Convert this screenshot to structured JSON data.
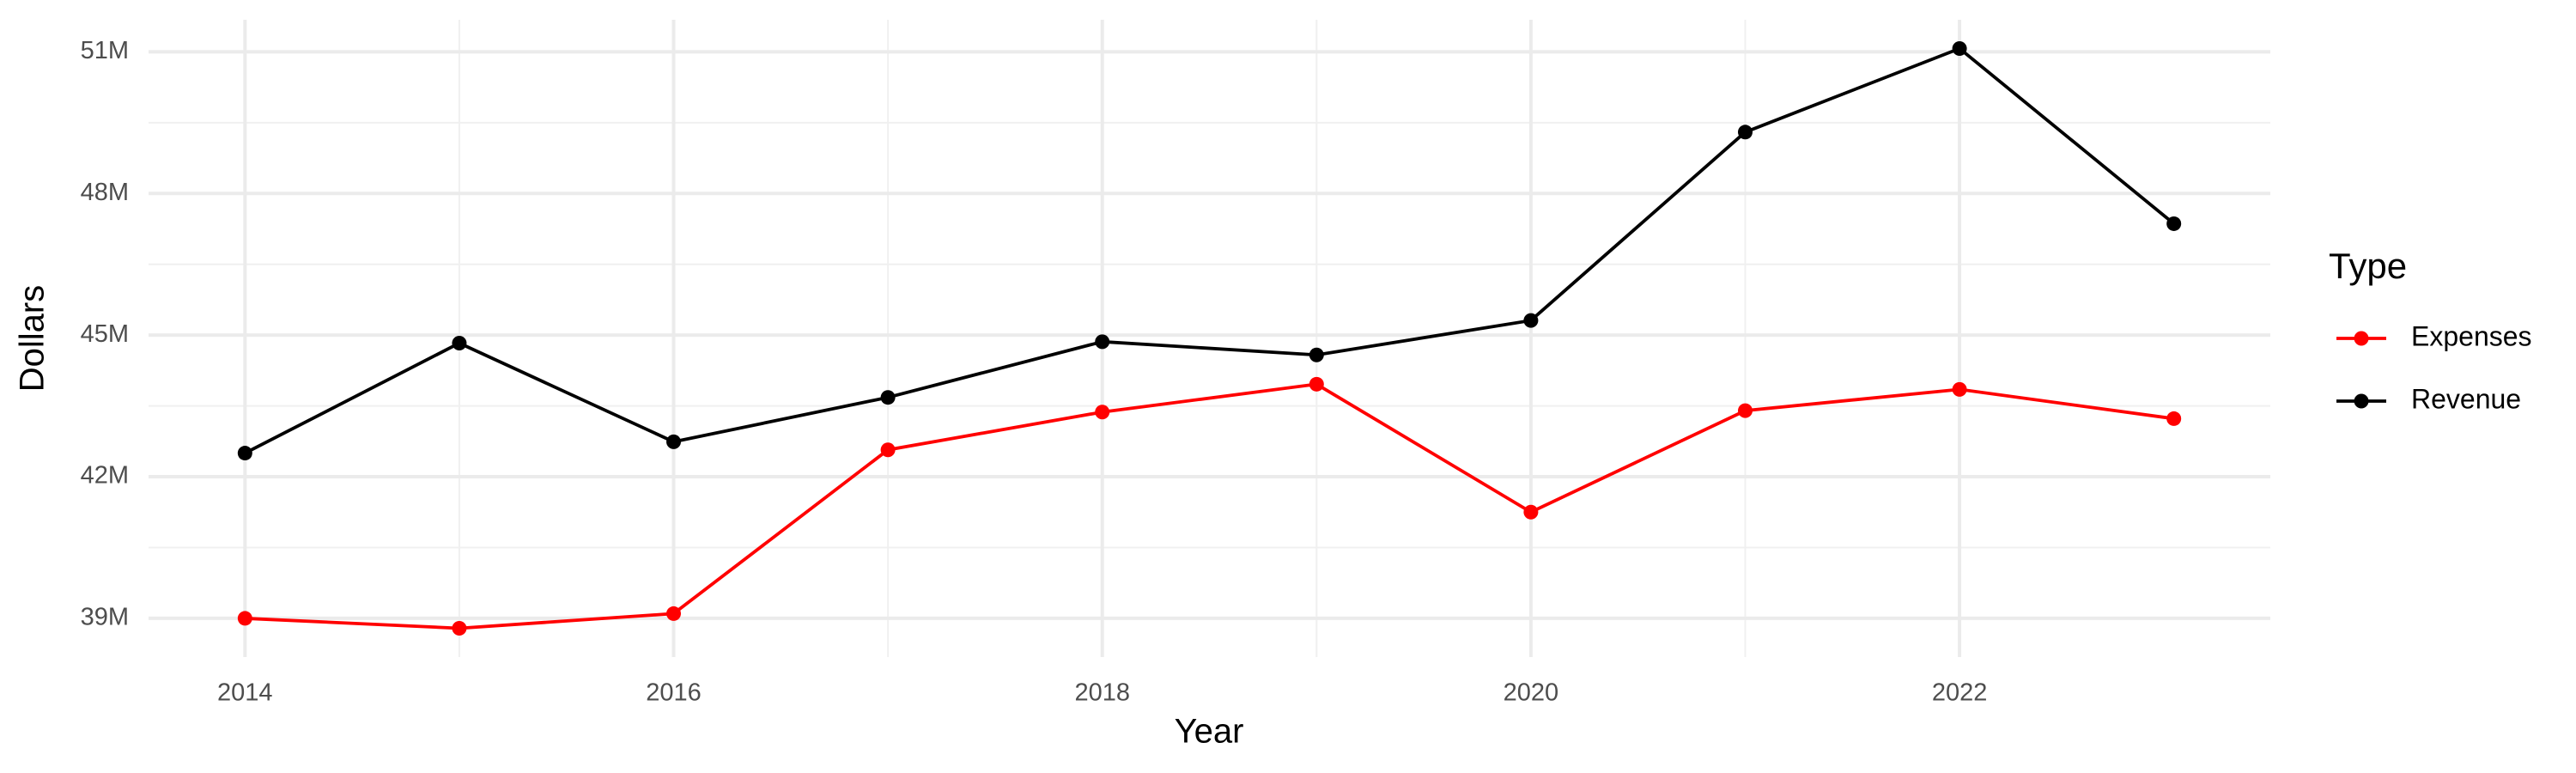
{
  "chart_data": {
    "type": "line",
    "x_label": "Year",
    "y_label": "Dollars",
    "legend_title": "Type",
    "x": [
      2014,
      2015,
      2016,
      2017,
      2018,
      2019,
      2020,
      2021,
      2022,
      2023
    ],
    "series": [
      {
        "name": "Expenses",
        "color": "#ff0000",
        "values": [
          39000000,
          38790000,
          39100000,
          42570000,
          43370000,
          43960000,
          41250000,
          43400000,
          43850000,
          43230000
        ]
      },
      {
        "name": "Revenue",
        "color": "#000000",
        "values": [
          42500000,
          44830000,
          42740000,
          43680000,
          44860000,
          44580000,
          45310000,
          49300000,
          51070000,
          47360000
        ]
      }
    ],
    "xlim": [
      2013.55,
      2023.45
    ],
    "xticks": [
      2014,
      2016,
      2018,
      2020,
      2022
    ],
    "ylim": [
      38180000,
      51680000
    ],
    "yticks": [
      {
        "value": 39000000,
        "label": "39M"
      },
      {
        "value": 42000000,
        "label": "42M"
      },
      {
        "value": 45000000,
        "label": "45M"
      },
      {
        "value": 48000000,
        "label": "48M"
      },
      {
        "value": 51000000,
        "label": "51M"
      }
    ],
    "grid": true,
    "legend": "right"
  }
}
